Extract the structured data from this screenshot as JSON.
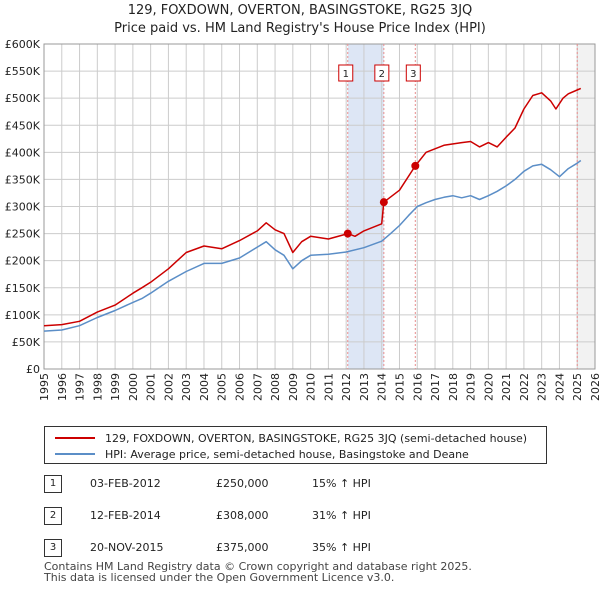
{
  "title_line1": "129, FOXDOWN, OVERTON, BASINGSTOKE, RG25 3JQ",
  "title_line2": "Price paid vs. HM Land Registry's House Price Index (HPI)",
  "colors": {
    "property": "#cc0000",
    "hpi": "#5b8ec7",
    "band": "#dde6f5",
    "grid": "#cccccc",
    "marker_line": "#e88d8d"
  },
  "chart_data": {
    "type": "line",
    "title": "Price paid vs. HM Land Registry's House Price Index (HPI)",
    "xlabel": "",
    "ylabel": "",
    "xlim": [
      1995,
      2026
    ],
    "ylim": [
      0,
      600000
    ],
    "x_ticks": [
      "1995",
      "1996",
      "1997",
      "1998",
      "1999",
      "2000",
      "2001",
      "2002",
      "2003",
      "2004",
      "2005",
      "2006",
      "2007",
      "2008",
      "2009",
      "2010",
      "2011",
      "2012",
      "2013",
      "2014",
      "2015",
      "2016",
      "2017",
      "2018",
      "2019",
      "2020",
      "2021",
      "2022",
      "2023",
      "2024",
      "2025",
      "2026"
    ],
    "y_ticks": [
      "£0",
      "£50K",
      "£100K",
      "£150K",
      "£200K",
      "£250K",
      "£300K",
      "£350K",
      "£400K",
      "£450K",
      "£500K",
      "£550K",
      "£600K"
    ],
    "series": [
      {
        "name": "129, FOXDOWN, OVERTON, BASINGSTOKE, RG25 3JQ (semi-detached house)",
        "x": [
          1995.0,
          1996.0,
          1997.0,
          1998.0,
          1999.0,
          2000.0,
          2000.5,
          2001.0,
          2002.0,
          2003.0,
          2004.0,
          2005.0,
          2006.0,
          2007.0,
          2007.5,
          2008.0,
          2008.5,
          2009.0,
          2009.5,
          2010.0,
          2011.0,
          2012.1,
          2012.5,
          2013.0,
          2014.0,
          2014.12,
          2015.0,
          2015.89,
          2016.5,
          2017.5,
          2018.5,
          2019.0,
          2019.5,
          2020.0,
          2020.5,
          2021.0,
          2021.5,
          2022.0,
          2022.5,
          2023.0,
          2023.5,
          2023.8,
          2024.2,
          2024.5,
          2025.0,
          2025.2
        ],
        "values": [
          80000,
          82000,
          88000,
          105000,
          118000,
          140000,
          150000,
          160000,
          185000,
          215000,
          227000,
          222000,
          237000,
          255000,
          270000,
          257000,
          250000,
          215000,
          235000,
          245000,
          240000,
          250000,
          245000,
          255000,
          268000,
          308000,
          330000,
          375000,
          400000,
          413000,
          418000,
          420000,
          410000,
          418000,
          410000,
          428000,
          445000,
          480000,
          505000,
          510000,
          495000,
          480000,
          500000,
          508000,
          515000,
          518000
        ]
      },
      {
        "name": "HPI: Average price, semi-detached house, Basingstoke and Deane",
        "x": [
          1995.0,
          1996.0,
          1997.0,
          1998.0,
          1999.0,
          2000.0,
          2000.5,
          2001.0,
          2002.0,
          2003.0,
          2004.0,
          2005.0,
          2006.0,
          2007.0,
          2007.5,
          2008.0,
          2008.5,
          2009.0,
          2009.5,
          2010.0,
          2011.0,
          2012.0,
          2013.0,
          2014.0,
          2014.5,
          2015.0,
          2015.5,
          2016.0,
          2016.5,
          2017.0,
          2017.5,
          2018.0,
          2018.5,
          2019.0,
          2019.5,
          2020.0,
          2020.5,
          2021.0,
          2021.5,
          2022.0,
          2022.5,
          2023.0,
          2023.5,
          2024.0,
          2024.5,
          2025.0,
          2025.2
        ],
        "values": [
          70000,
          72000,
          80000,
          95000,
          108000,
          123000,
          130000,
          140000,
          162000,
          180000,
          195000,
          195000,
          205000,
          225000,
          235000,
          220000,
          210000,
          185000,
          200000,
          210000,
          212000,
          216000,
          224000,
          236000,
          250000,
          265000,
          283000,
          300000,
          307000,
          313000,
          317000,
          320000,
          316000,
          320000,
          313000,
          320000,
          328000,
          338000,
          350000,
          365000,
          375000,
          378000,
          368000,
          355000,
          370000,
          380000,
          385000
        ]
      }
    ],
    "sales": [
      {
        "id": "1",
        "x": 2012.09,
        "value": 250000
      },
      {
        "id": "2",
        "x": 2014.12,
        "value": 308000
      },
      {
        "id": "3",
        "x": 2015.89,
        "value": 375000
      }
    ],
    "bands": [
      [
        2012.09,
        2014.12
      ]
    ],
    "marker_lines": [
      2015.89,
      2025.0
    ]
  },
  "legend": {
    "property_label": "129, FOXDOWN, OVERTON, BASINGSTOKE, RG25 3JQ (semi-detached house)",
    "hpi_label": "HPI: Average price, semi-detached house, Basingstoke and Deane"
  },
  "sales_table": [
    {
      "num": "1",
      "date": "03-FEB-2012",
      "price": "£250,000",
      "hpi": "15% ↑ HPI"
    },
    {
      "num": "2",
      "date": "12-FEB-2014",
      "price": "£308,000",
      "hpi": "31% ↑ HPI"
    },
    {
      "num": "3",
      "date": "20-NOV-2015",
      "price": "£375,000",
      "hpi": "35% ↑ HPI"
    }
  ],
  "footer": {
    "line1": "Contains HM Land Registry data © Crown copyright and database right 2025.",
    "line2": "This data is licensed under the Open Government Licence v3.0."
  }
}
